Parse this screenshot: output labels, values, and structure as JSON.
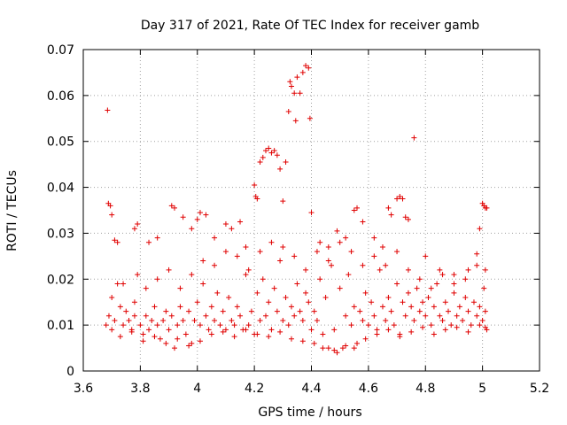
{
  "chart_data": {
    "type": "scatter",
    "title": "Day 317 of 2021, Rate Of TEC Index for receiver gamb",
    "xlabel": "GPS time / hours",
    "ylabel": "ROTI / TECUs",
    "xlim": [
      3.6,
      5.2
    ],
    "ylim": [
      0,
      0.07
    ],
    "x_ticks": [
      3.6,
      3.8,
      4.0,
      4.2,
      4.4,
      4.6,
      4.8,
      5.0,
      5.2
    ],
    "x_tick_labels": [
      "3.6",
      "3.8",
      "4",
      "4.2",
      "4.4",
      "4.6",
      "4.8",
      "5",
      "5.2"
    ],
    "y_ticks": [
      0,
      0.01,
      0.02,
      0.03,
      0.04,
      0.05,
      0.06,
      0.07
    ],
    "y_tick_labels": [
      "0",
      "0.01",
      "0.02",
      "0.03",
      "0.04",
      "0.05",
      "0.06",
      "0.07"
    ],
    "grid": true,
    "marker": "+",
    "marker_color": "#e00000",
    "series": [
      {
        "name": "ROTI",
        "points": [
          [
            3.685,
            0.0568
          ],
          [
            3.688,
            0.0365
          ],
          [
            3.695,
            0.036
          ],
          [
            3.7,
            0.034
          ],
          [
            3.71,
            0.0285
          ],
          [
            3.72,
            0.028
          ],
          [
            3.78,
            0.031
          ],
          [
            3.79,
            0.032
          ],
          [
            3.83,
            0.028
          ],
          [
            3.86,
            0.029
          ],
          [
            3.91,
            0.036
          ],
          [
            3.92,
            0.0355
          ],
          [
            3.95,
            0.0335
          ],
          [
            3.98,
            0.031
          ],
          [
            4.0,
            0.033
          ],
          [
            4.01,
            0.0345
          ],
          [
            4.03,
            0.034
          ],
          [
            4.06,
            0.029
          ],
          [
            4.1,
            0.032
          ],
          [
            4.12,
            0.031
          ],
          [
            4.15,
            0.0325
          ],
          [
            4.17,
            0.027
          ],
          [
            4.2,
            0.0405
          ],
          [
            4.205,
            0.038
          ],
          [
            4.21,
            0.0375
          ],
          [
            4.22,
            0.0455
          ],
          [
            4.23,
            0.0465
          ],
          [
            4.24,
            0.048
          ],
          [
            4.25,
            0.0485
          ],
          [
            4.26,
            0.0475
          ],
          [
            4.27,
            0.048
          ],
          [
            4.28,
            0.047
          ],
          [
            4.29,
            0.044
          ],
          [
            4.3,
            0.037
          ],
          [
            4.31,
            0.0455
          ],
          [
            4.32,
            0.0565
          ],
          [
            4.325,
            0.063
          ],
          [
            4.33,
            0.062
          ],
          [
            4.34,
            0.0605
          ],
          [
            4.345,
            0.0545
          ],
          [
            4.35,
            0.064
          ],
          [
            4.36,
            0.0605
          ],
          [
            4.37,
            0.065
          ],
          [
            4.38,
            0.0665
          ],
          [
            4.39,
            0.066
          ],
          [
            4.395,
            0.055
          ],
          [
            4.4,
            0.0345
          ],
          [
            4.43,
            0.028
          ],
          [
            4.46,
            0.027
          ],
          [
            4.49,
            0.0305
          ],
          [
            4.52,
            0.029
          ],
          [
            4.55,
            0.035
          ],
          [
            4.56,
            0.0355
          ],
          [
            4.58,
            0.0325
          ],
          [
            4.62,
            0.029
          ],
          [
            4.65,
            0.027
          ],
          [
            4.67,
            0.0355
          ],
          [
            4.68,
            0.034
          ],
          [
            4.7,
            0.0375
          ],
          [
            4.71,
            0.038
          ],
          [
            4.72,
            0.0375
          ],
          [
            4.73,
            0.0335
          ],
          [
            4.74,
            0.033
          ],
          [
            4.76,
            0.0508
          ],
          [
            4.8,
            0.025
          ],
          [
            4.85,
            0.022
          ],
          [
            4.9,
            0.021
          ],
          [
            4.95,
            0.022
          ],
          [
            4.98,
            0.0255
          ],
          [
            4.99,
            0.031
          ],
          [
            5.0,
            0.0365
          ],
          [
            5.005,
            0.036
          ],
          [
            5.01,
            0.0355
          ],
          [
            5.015,
            0.0355
          ],
          [
            3.68,
            0.01
          ],
          [
            3.69,
            0.012
          ],
          [
            3.7,
            0.009
          ],
          [
            3.71,
            0.011
          ],
          [
            3.72,
            0.019
          ],
          [
            3.73,
            0.014
          ],
          [
            3.74,
            0.01
          ],
          [
            3.75,
            0.013
          ],
          [
            3.76,
            0.011
          ],
          [
            3.77,
            0.009
          ],
          [
            3.78,
            0.012
          ],
          [
            3.79,
            0.021
          ],
          [
            3.8,
            0.01
          ],
          [
            3.81,
            0.008
          ],
          [
            3.82,
            0.012
          ],
          [
            3.83,
            0.009
          ],
          [
            3.84,
            0.011
          ],
          [
            3.85,
            0.014
          ],
          [
            3.86,
            0.01
          ],
          [
            3.87,
            0.007
          ],
          [
            3.88,
            0.011
          ],
          [
            3.89,
            0.013
          ],
          [
            3.9,
            0.009
          ],
          [
            3.91,
            0.012
          ],
          [
            3.92,
            0.005
          ],
          [
            3.93,
            0.01
          ],
          [
            3.94,
            0.014
          ],
          [
            3.95,
            0.011
          ],
          [
            3.96,
            0.008
          ],
          [
            3.97,
            0.013
          ],
          [
            3.98,
            0.006
          ],
          [
            3.99,
            0.011
          ],
          [
            4.0,
            0.015
          ],
          [
            4.01,
            0.01
          ],
          [
            4.02,
            0.019
          ],
          [
            4.03,
            0.012
          ],
          [
            4.04,
            0.009
          ],
          [
            4.05,
            0.014
          ],
          [
            4.06,
            0.011
          ],
          [
            4.07,
            0.017
          ],
          [
            4.08,
            0.01
          ],
          [
            4.09,
            0.013
          ],
          [
            4.1,
            0.009
          ],
          [
            4.11,
            0.016
          ],
          [
            4.12,
            0.011
          ],
          [
            4.13,
            0.01
          ],
          [
            4.14,
            0.014
          ],
          [
            4.15,
            0.012
          ],
          [
            4.16,
            0.009
          ],
          [
            4.17,
            0.021
          ],
          [
            4.18,
            0.01
          ],
          [
            4.19,
            0.013
          ],
          [
            4.2,
            0.008
          ],
          [
            4.21,
            0.017
          ],
          [
            4.22,
            0.011
          ],
          [
            4.23,
            0.02
          ],
          [
            4.24,
            0.012
          ],
          [
            4.25,
            0.015
          ],
          [
            4.26,
            0.009
          ],
          [
            4.27,
            0.018
          ],
          [
            4.28,
            0.013
          ],
          [
            4.29,
            0.024
          ],
          [
            4.3,
            0.011
          ],
          [
            4.31,
            0.016
          ],
          [
            4.32,
            0.01
          ],
          [
            4.33,
            0.014
          ],
          [
            4.34,
            0.012
          ],
          [
            4.35,
            0.019
          ],
          [
            4.36,
            0.013
          ],
          [
            4.37,
            0.011
          ],
          [
            4.38,
            0.017
          ],
          [
            4.39,
            0.015
          ],
          [
            4.4,
            0.009
          ],
          [
            4.41,
            0.013
          ],
          [
            4.42,
            0.011
          ],
          [
            4.43,
            0.02
          ],
          [
            4.44,
            0.008
          ],
          [
            4.45,
            0.016
          ],
          [
            4.46,
            0.005
          ],
          [
            4.47,
            0.023
          ],
          [
            4.48,
            0.009
          ],
          [
            4.49,
            0.004
          ],
          [
            4.5,
            0.018
          ],
          [
            4.51,
            0.005
          ],
          [
            4.52,
            0.012
          ],
          [
            4.53,
            0.021
          ],
          [
            4.54,
            0.01
          ],
          [
            4.55,
            0.014
          ],
          [
            4.56,
            0.006
          ],
          [
            4.57,
            0.013
          ],
          [
            4.58,
            0.011
          ],
          [
            4.59,
            0.017
          ],
          [
            4.6,
            0.01
          ],
          [
            4.61,
            0.015
          ],
          [
            4.62,
            0.012
          ],
          [
            4.63,
            0.009
          ],
          [
            4.64,
            0.022
          ],
          [
            4.65,
            0.014
          ],
          [
            4.66,
            0.011
          ],
          [
            4.67,
            0.016
          ],
          [
            4.68,
            0.013
          ],
          [
            4.69,
            0.01
          ],
          [
            4.7,
            0.019
          ],
          [
            4.71,
            0.008
          ],
          [
            4.72,
            0.015
          ],
          [
            4.73,
            0.012
          ],
          [
            4.74,
            0.017
          ],
          [
            4.75,
            0.014
          ],
          [
            4.76,
            0.011
          ],
          [
            4.77,
            0.018
          ],
          [
            4.78,
            0.013
          ],
          [
            4.79,
            0.015
          ],
          [
            4.8,
            0.012
          ],
          [
            4.81,
            0.016
          ],
          [
            4.82,
            0.01
          ],
          [
            4.83,
            0.014
          ],
          [
            4.84,
            0.019
          ],
          [
            4.85,
            0.012
          ],
          [
            4.86,
            0.011
          ],
          [
            4.87,
            0.015
          ],
          [
            4.88,
            0.013
          ],
          [
            4.89,
            0.01
          ],
          [
            4.9,
            0.017
          ],
          [
            4.91,
            0.012
          ],
          [
            4.92,
            0.014
          ],
          [
            4.93,
            0.011
          ],
          [
            4.94,
            0.016
          ],
          [
            4.95,
            0.013
          ],
          [
            4.96,
            0.01
          ],
          [
            4.97,
            0.015
          ],
          [
            4.98,
            0.012
          ],
          [
            4.99,
            0.014
          ],
          [
            5.0,
            0.011
          ],
          [
            5.005,
            0.018
          ],
          [
            5.01,
            0.013
          ],
          [
            5.015,
            0.009
          ],
          [
            3.7,
            0.016
          ],
          [
            3.74,
            0.019
          ],
          [
            3.78,
            0.015
          ],
          [
            3.82,
            0.018
          ],
          [
            3.86,
            0.02
          ],
          [
            3.9,
            0.022
          ],
          [
            3.94,
            0.018
          ],
          [
            3.98,
            0.021
          ],
          [
            4.02,
            0.024
          ],
          [
            4.06,
            0.023
          ],
          [
            4.1,
            0.026
          ],
          [
            4.14,
            0.025
          ],
          [
            4.18,
            0.022
          ],
          [
            4.22,
            0.026
          ],
          [
            4.26,
            0.028
          ],
          [
            4.3,
            0.027
          ],
          [
            4.34,
            0.025
          ],
          [
            4.38,
            0.022
          ],
          [
            4.42,
            0.026
          ],
          [
            4.46,
            0.024
          ],
          [
            4.5,
            0.028
          ],
          [
            4.54,
            0.026
          ],
          [
            4.58,
            0.023
          ],
          [
            4.62,
            0.025
          ],
          [
            4.66,
            0.023
          ],
          [
            4.7,
            0.026
          ],
          [
            4.74,
            0.022
          ],
          [
            4.78,
            0.02
          ],
          [
            4.82,
            0.018
          ],
          [
            4.86,
            0.021
          ],
          [
            4.9,
            0.019
          ],
          [
            4.94,
            0.02
          ],
          [
            4.98,
            0.023
          ],
          [
            5.01,
            0.022
          ],
          [
            3.73,
            0.0075
          ],
          [
            3.77,
            0.0085
          ],
          [
            3.81,
            0.0065
          ],
          [
            3.85,
            0.0075
          ],
          [
            3.89,
            0.006
          ],
          [
            3.93,
            0.007
          ],
          [
            3.97,
            0.0055
          ],
          [
            4.01,
            0.0065
          ],
          [
            4.05,
            0.008
          ],
          [
            4.09,
            0.0085
          ],
          [
            4.13,
            0.0075
          ],
          [
            4.17,
            0.009
          ],
          [
            4.21,
            0.008
          ],
          [
            4.25,
            0.0075
          ],
          [
            4.29,
            0.0085
          ],
          [
            4.33,
            0.007
          ],
          [
            4.37,
            0.0065
          ],
          [
            4.41,
            0.006
          ],
          [
            4.44,
            0.005
          ],
          [
            4.48,
            0.0045
          ],
          [
            4.52,
            0.0055
          ],
          [
            4.55,
            0.005
          ],
          [
            4.59,
            0.007
          ],
          [
            4.63,
            0.008
          ],
          [
            4.67,
            0.009
          ],
          [
            4.71,
            0.0075
          ],
          [
            4.75,
            0.0085
          ],
          [
            4.79,
            0.0095
          ],
          [
            4.83,
            0.008
          ],
          [
            4.87,
            0.009
          ],
          [
            4.91,
            0.0095
          ],
          [
            4.95,
            0.0085
          ],
          [
            4.99,
            0.01
          ],
          [
            5.01,
            0.0095
          ]
        ]
      }
    ]
  }
}
